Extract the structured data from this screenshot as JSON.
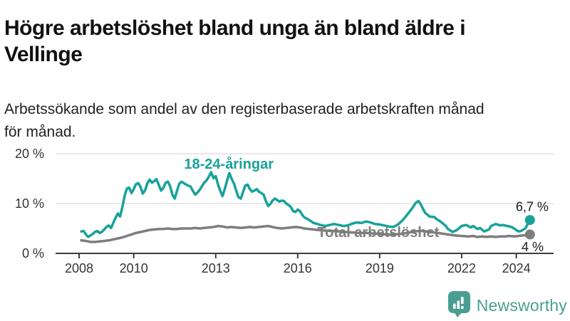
{
  "header": {
    "title_line1": "Högre arbetslöshet bland unga än bland äldre i",
    "title_line2": "Vellinge",
    "subtitle_line1": "Arbetssökande som andel av den registerbaserade arbetskraften månad",
    "subtitle_line2": "för månad."
  },
  "colors": {
    "youth": "#17a29a",
    "total": "#7d7d7d",
    "grid": "#e2e2e2",
    "axis": "#3c3c3c",
    "text": "#1a1a1a",
    "logo": "#4a9e91"
  },
  "chart_data": {
    "type": "line",
    "title": "Högre arbetslöshet bland unga än bland äldre i Vellinge",
    "subtitle": "Arbetssökande som andel av den registerbaserade arbetskraften månad för månad.",
    "xlabel": "",
    "ylabel": "",
    "x_unit": "year (decimal; monthly data)",
    "xlim": [
      2007.1,
      2025.4
    ],
    "ylim": [
      0,
      20
    ],
    "grid": "horizontal gridlines at 10% and 20%",
    "legend_position": "labels drawn on chart",
    "yticks": [
      {
        "value": 0,
        "label": "0 %"
      },
      {
        "value": 10,
        "label": "10 %"
      },
      {
        "value": 20,
        "label": "20 %"
      }
    ],
    "xticks": [
      {
        "value": 2008,
        "label": "2008"
      },
      {
        "value": 2010,
        "label": "2010"
      },
      {
        "value": 2013,
        "label": "2013"
      },
      {
        "value": 2016,
        "label": "2016"
      },
      {
        "value": 2019,
        "label": "2019"
      },
      {
        "value": 2022,
        "label": "2022"
      },
      {
        "value": 2024,
        "label": "2024"
      }
    ],
    "series": [
      {
        "name": "18-24-åringar",
        "color": "#17a29a",
        "end_value": 6.7,
        "end_label": "6,7 %",
        "points": [
          [
            2008.08,
            4.4
          ],
          [
            2008.17,
            4.5
          ],
          [
            2008.25,
            3.8
          ],
          [
            2008.33,
            3.3
          ],
          [
            2008.42,
            3.6
          ],
          [
            2008.5,
            3.9
          ],
          [
            2008.58,
            4.3
          ],
          [
            2008.67,
            4.5
          ],
          [
            2008.75,
            4.1
          ],
          [
            2008.83,
            4.3
          ],
          [
            2008.92,
            4.8
          ],
          [
            2009.0,
            5.3
          ],
          [
            2009.08,
            5.6
          ],
          [
            2009.17,
            5.1
          ],
          [
            2009.25,
            6.1
          ],
          [
            2009.33,
            7.1
          ],
          [
            2009.42,
            8.0
          ],
          [
            2009.5,
            7.4
          ],
          [
            2009.58,
            9.2
          ],
          [
            2009.67,
            11.6
          ],
          [
            2009.75,
            13.0
          ],
          [
            2009.83,
            13.2
          ],
          [
            2009.92,
            12.1
          ],
          [
            2010.0,
            12.9
          ],
          [
            2010.08,
            13.9
          ],
          [
            2010.17,
            14.1
          ],
          [
            2010.25,
            13.3
          ],
          [
            2010.33,
            12.0
          ],
          [
            2010.42,
            12.7
          ],
          [
            2010.5,
            14.1
          ],
          [
            2010.58,
            14.8
          ],
          [
            2010.67,
            14.2
          ],
          [
            2010.75,
            14.5
          ],
          [
            2010.83,
            14.9
          ],
          [
            2010.92,
            13.7
          ],
          [
            2011.0,
            12.6
          ],
          [
            2011.08,
            13.1
          ],
          [
            2011.17,
            14.2
          ],
          [
            2011.25,
            14.4
          ],
          [
            2011.33,
            13.5
          ],
          [
            2011.42,
            11.7
          ],
          [
            2011.5,
            11.0
          ],
          [
            2011.58,
            12.5
          ],
          [
            2011.67,
            14.0
          ],
          [
            2011.75,
            14.4
          ],
          [
            2011.83,
            14.1
          ],
          [
            2011.92,
            13.8
          ],
          [
            2012.0,
            13.6
          ],
          [
            2012.08,
            13.4
          ],
          [
            2012.17,
            12.5
          ],
          [
            2012.25,
            11.8
          ],
          [
            2012.33,
            12.2
          ],
          [
            2012.42,
            12.8
          ],
          [
            2012.5,
            13.5
          ],
          [
            2012.58,
            14.2
          ],
          [
            2012.67,
            14.7
          ],
          [
            2012.75,
            15.4
          ],
          [
            2012.83,
            16.3
          ],
          [
            2012.92,
            15.1
          ],
          [
            2013.0,
            15.5
          ],
          [
            2013.08,
            13.9
          ],
          [
            2013.17,
            12.5
          ],
          [
            2013.25,
            11.5
          ],
          [
            2013.33,
            12.9
          ],
          [
            2013.42,
            14.7
          ],
          [
            2013.5,
            16.1
          ],
          [
            2013.58,
            15.0
          ],
          [
            2013.67,
            14.0
          ],
          [
            2013.75,
            12.6
          ],
          [
            2013.83,
            11.3
          ],
          [
            2013.92,
            11.0
          ],
          [
            2014.0,
            12.3
          ],
          [
            2014.08,
            13.6
          ],
          [
            2014.17,
            13.8
          ],
          [
            2014.25,
            12.9
          ],
          [
            2014.33,
            12.4
          ],
          [
            2014.42,
            12.6
          ],
          [
            2014.5,
            12.9
          ],
          [
            2014.58,
            12.4
          ],
          [
            2014.67,
            12.1
          ],
          [
            2014.75,
            11.8
          ],
          [
            2014.83,
            10.6
          ],
          [
            2014.92,
            9.5
          ],
          [
            2015.0,
            9.9
          ],
          [
            2015.08,
            10.6
          ],
          [
            2015.17,
            11.0
          ],
          [
            2015.25,
            10.7
          ],
          [
            2015.33,
            10.4
          ],
          [
            2015.42,
            10.6
          ],
          [
            2015.5,
            10.5
          ],
          [
            2015.58,
            10.0
          ],
          [
            2015.67,
            9.7
          ],
          [
            2015.75,
            9.3
          ],
          [
            2015.83,
            8.5
          ],
          [
            2015.92,
            8.3
          ],
          [
            2016.0,
            8.8
          ],
          [
            2016.08,
            8.5
          ],
          [
            2016.17,
            7.7
          ],
          [
            2016.25,
            7.2
          ],
          [
            2016.33,
            7.0
          ],
          [
            2016.42,
            6.7
          ],
          [
            2016.5,
            6.4
          ],
          [
            2016.58,
            6.1
          ],
          [
            2016.67,
            6.0
          ],
          [
            2016.83,
            5.7
          ],
          [
            2017.0,
            5.5
          ],
          [
            2017.17,
            5.7
          ],
          [
            2017.33,
            5.9
          ],
          [
            2017.5,
            5.7
          ],
          [
            2017.67,
            5.5
          ],
          [
            2017.83,
            5.6
          ],
          [
            2018.0,
            6.0
          ],
          [
            2018.17,
            6.2
          ],
          [
            2018.33,
            6.1
          ],
          [
            2018.5,
            6.4
          ],
          [
            2018.67,
            6.2
          ],
          [
            2018.83,
            5.9
          ],
          [
            2019.0,
            5.8
          ],
          [
            2019.17,
            5.6
          ],
          [
            2019.33,
            5.4
          ],
          [
            2019.5,
            5.3
          ],
          [
            2019.67,
            5.8
          ],
          [
            2019.83,
            6.6
          ],
          [
            2020.0,
            7.7
          ],
          [
            2020.17,
            8.9
          ],
          [
            2020.33,
            10.2
          ],
          [
            2020.42,
            10.5
          ],
          [
            2020.5,
            9.9
          ],
          [
            2020.58,
            9.0
          ],
          [
            2020.67,
            8.1
          ],
          [
            2020.83,
            7.4
          ],
          [
            2021.0,
            7.3
          ],
          [
            2021.08,
            6.9
          ],
          [
            2021.25,
            6.3
          ],
          [
            2021.42,
            5.5
          ],
          [
            2021.5,
            4.9
          ],
          [
            2021.67,
            4.3
          ],
          [
            2021.83,
            4.7
          ],
          [
            2022.0,
            5.5
          ],
          [
            2022.17,
            5.7
          ],
          [
            2022.33,
            5.2
          ],
          [
            2022.42,
            5.5
          ],
          [
            2022.58,
            4.9
          ],
          [
            2022.67,
            5.1
          ],
          [
            2022.83,
            4.4
          ],
          [
            2023.0,
            4.8
          ],
          [
            2023.08,
            5.5
          ],
          [
            2023.25,
            5.9
          ],
          [
            2023.42,
            5.6
          ],
          [
            2023.5,
            5.7
          ],
          [
            2023.67,
            5.5
          ],
          [
            2023.83,
            5.3
          ],
          [
            2024.0,
            4.7
          ],
          [
            2024.08,
            4.4
          ],
          [
            2024.17,
            4.5
          ],
          [
            2024.33,
            5.0
          ],
          [
            2024.42,
            5.9
          ],
          [
            2024.5,
            6.7
          ]
        ]
      },
      {
        "name": "Total arbetslöshet",
        "color": "#7d7d7d",
        "end_value": 4,
        "end_label": "4 %",
        "points": [
          [
            2008.08,
            2.6
          ],
          [
            2008.25,
            2.5
          ],
          [
            2008.42,
            2.3
          ],
          [
            2008.58,
            2.3
          ],
          [
            2008.75,
            2.4
          ],
          [
            2008.92,
            2.5
          ],
          [
            2009.08,
            2.6
          ],
          [
            2009.25,
            2.8
          ],
          [
            2009.42,
            3.0
          ],
          [
            2009.58,
            3.2
          ],
          [
            2009.75,
            3.5
          ],
          [
            2009.92,
            3.8
          ],
          [
            2010.08,
            4.1
          ],
          [
            2010.25,
            4.3
          ],
          [
            2010.42,
            4.5
          ],
          [
            2010.58,
            4.7
          ],
          [
            2010.75,
            4.8
          ],
          [
            2010.92,
            4.9
          ],
          [
            2011.08,
            4.9
          ],
          [
            2011.25,
            5.0
          ],
          [
            2011.42,
            4.9
          ],
          [
            2011.58,
            4.9
          ],
          [
            2011.75,
            5.0
          ],
          [
            2011.92,
            5.0
          ],
          [
            2012.08,
            5.0
          ],
          [
            2012.25,
            5.1
          ],
          [
            2012.42,
            5.0
          ],
          [
            2012.58,
            5.1
          ],
          [
            2012.75,
            5.2
          ],
          [
            2012.92,
            5.3
          ],
          [
            2013.08,
            5.5
          ],
          [
            2013.25,
            5.4
          ],
          [
            2013.42,
            5.2
          ],
          [
            2013.58,
            5.3
          ],
          [
            2013.75,
            5.2
          ],
          [
            2013.92,
            5.1
          ],
          [
            2014.08,
            5.2
          ],
          [
            2014.25,
            5.3
          ],
          [
            2014.42,
            5.2
          ],
          [
            2014.58,
            5.3
          ],
          [
            2014.75,
            5.4
          ],
          [
            2014.92,
            5.5
          ],
          [
            2015.08,
            5.3
          ],
          [
            2015.25,
            5.1
          ],
          [
            2015.42,
            5.0
          ],
          [
            2015.58,
            5.1
          ],
          [
            2015.75,
            5.2
          ],
          [
            2015.92,
            5.3
          ],
          [
            2016.08,
            5.2
          ],
          [
            2016.25,
            5.0
          ],
          [
            2016.42,
            4.9
          ],
          [
            2016.58,
            4.8
          ],
          [
            2016.75,
            4.7
          ],
          [
            2016.92,
            4.6
          ],
          [
            2017.25,
            4.5
          ],
          [
            2017.5,
            4.4
          ],
          [
            2017.75,
            4.3
          ],
          [
            2018.0,
            4.2
          ],
          [
            2018.25,
            4.1
          ],
          [
            2018.5,
            4.1
          ],
          [
            2018.75,
            4.0
          ],
          [
            2019.0,
            3.9
          ],
          [
            2019.25,
            3.8
          ],
          [
            2019.5,
            3.8
          ],
          [
            2019.75,
            3.9
          ],
          [
            2020.0,
            4.1
          ],
          [
            2020.25,
            4.4
          ],
          [
            2020.5,
            4.5
          ],
          [
            2020.75,
            4.4
          ],
          [
            2021.0,
            4.2
          ],
          [
            2021.25,
            4.0
          ],
          [
            2021.5,
            3.8
          ],
          [
            2021.75,
            3.6
          ],
          [
            2022.0,
            3.5
          ],
          [
            2022.25,
            3.4
          ],
          [
            2022.42,
            3.5
          ],
          [
            2022.58,
            3.3
          ],
          [
            2022.75,
            3.4
          ],
          [
            2022.92,
            3.3
          ],
          [
            2023.08,
            3.4
          ],
          [
            2023.25,
            3.3
          ],
          [
            2023.42,
            3.4
          ],
          [
            2023.58,
            3.4
          ],
          [
            2023.75,
            3.5
          ],
          [
            2023.92,
            3.4
          ],
          [
            2024.08,
            3.5
          ],
          [
            2024.25,
            3.6
          ],
          [
            2024.42,
            3.7
          ],
          [
            2024.5,
            3.8
          ]
        ]
      }
    ],
    "annotations": [
      {
        "text": "18-24-åringar",
        "year": 2013.48,
        "value": 17.0,
        "color": "#17a29a",
        "bold": true,
        "anchor": "middle"
      },
      {
        "text": "Total arbetslöshet",
        "year": 2018.95,
        "value": 3.3,
        "color": "#7d7d7d",
        "bold": true,
        "anchor": "middle"
      },
      {
        "text": "6,7 %",
        "year": 2025.18,
        "value": 8.5,
        "color": "#1a1a1a",
        "bold": false,
        "anchor": "end"
      },
      {
        "text": "4 %",
        "year": 2025.0,
        "value": 0.4,
        "color": "#1a1a1a",
        "bold": false,
        "anchor": "end"
      }
    ]
  },
  "logo": {
    "text": "Newsworthy",
    "icon": "bar-chart-speech-bubble"
  }
}
